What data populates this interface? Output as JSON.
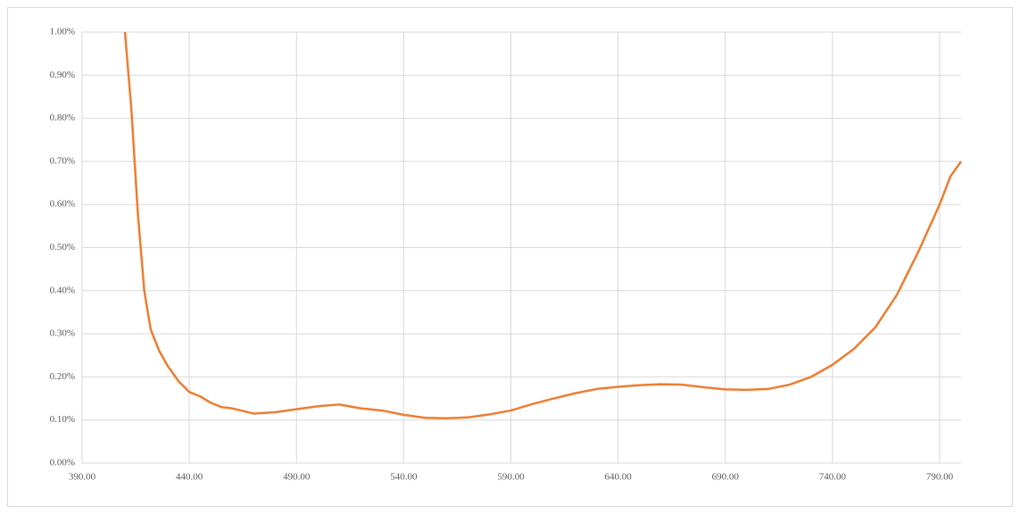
{
  "chart_data": {
    "type": "line",
    "x": [
      410,
      413,
      416,
      419,
      422,
      426,
      430,
      435,
      440,
      445,
      450,
      455,
      460,
      470,
      480,
      490,
      500,
      510,
      520,
      530,
      540,
      550,
      560,
      570,
      580,
      590,
      600,
      610,
      620,
      630,
      640,
      650,
      660,
      670,
      680,
      690,
      700,
      710,
      720,
      730,
      740,
      750,
      760,
      770,
      780,
      790,
      795,
      800
    ],
    "values": [
      1.0,
      0.82,
      0.58,
      0.4,
      0.31,
      0.26,
      0.225,
      0.19,
      0.165,
      0.155,
      0.14,
      0.13,
      0.127,
      0.115,
      0.118,
      0.125,
      0.132,
      0.136,
      0.127,
      0.122,
      0.112,
      0.105,
      0.104,
      0.106,
      0.113,
      0.122,
      0.137,
      0.15,
      0.162,
      0.172,
      0.177,
      0.181,
      0.183,
      0.182,
      0.176,
      0.171,
      0.17,
      0.172,
      0.182,
      0.2,
      0.228,
      0.265,
      0.315,
      0.39,
      0.49,
      0.6,
      0.665,
      0.7
    ],
    "color": "#ed7d31",
    "xlim": [
      390,
      800
    ],
    "xticks": [
      {
        "value": 390,
        "label": "390.00"
      },
      {
        "value": 440,
        "label": "440.00"
      },
      {
        "value": 490,
        "label": "490.00"
      },
      {
        "value": 540,
        "label": "540.00"
      },
      {
        "value": 590,
        "label": "590.00"
      },
      {
        "value": 640,
        "label": "640.00"
      },
      {
        "value": 690,
        "label": "690.00"
      },
      {
        "value": 740,
        "label": "740.00"
      },
      {
        "value": 790,
        "label": "790.00"
      }
    ],
    "ylim": [
      0,
      1
    ],
    "yticks": [
      {
        "value": 0,
        "label": "0.00%"
      },
      {
        "value": 0.1,
        "label": "0.10%"
      },
      {
        "value": 0.2,
        "label": "0.20%"
      },
      {
        "value": 0.3,
        "label": "0.30%"
      },
      {
        "value": 0.4,
        "label": "0.40%"
      },
      {
        "value": 0.5,
        "label": "0.50%"
      },
      {
        "value": 0.6,
        "label": "0.60%"
      },
      {
        "value": 0.7,
        "label": "0.70%"
      },
      {
        "value": 0.8,
        "label": "0.80%"
      },
      {
        "value": 0.9,
        "label": "0.90%"
      },
      {
        "value": 1,
        "label": "1.00%"
      }
    ],
    "grid": true
  }
}
